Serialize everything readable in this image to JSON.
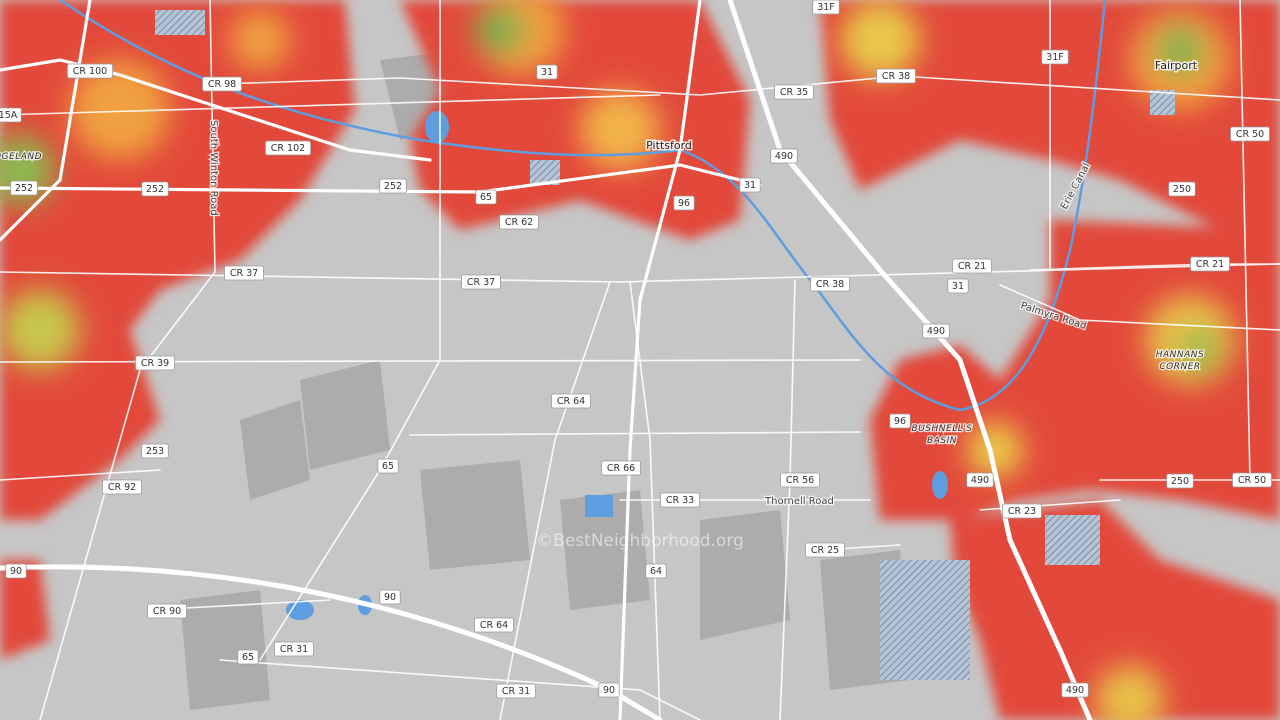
{
  "places": [
    "Pittsford",
    "Fairport",
    "BUSHNELL'S",
    "BASIN",
    "HANNANS",
    "CORNER",
    "OGELAND"
  ],
  "road_names": [
    "Thornell Road",
    "Palmyra Road",
    "Erie Canal",
    "South Winton Road"
  ],
  "roads": [
    "CR 100",
    "CR 98",
    "31",
    "CR 38",
    "31F",
    "31F",
    "CR 35",
    "CR 102",
    "252",
    "252",
    "252",
    "65",
    "CR 62",
    "96",
    "31",
    "490",
    "CR 50",
    "250",
    "CR 21",
    "CR 21",
    "31",
    "CR 38",
    "490",
    "CR 37",
    "CR 37",
    "CR 39",
    "CR 64",
    "96",
    "253",
    "65",
    "CR 66",
    "CR 92",
    "CR 33",
    "CR 56",
    "490",
    "250",
    "CR 50",
    "CR 23",
    "90",
    "CR 25",
    "90",
    "64",
    "CR 90",
    "CR 64",
    "65",
    "CR 31",
    "90",
    "CR 31",
    "490",
    "15A"
  ],
  "watermark": "©BestNeighborhood.org"
}
